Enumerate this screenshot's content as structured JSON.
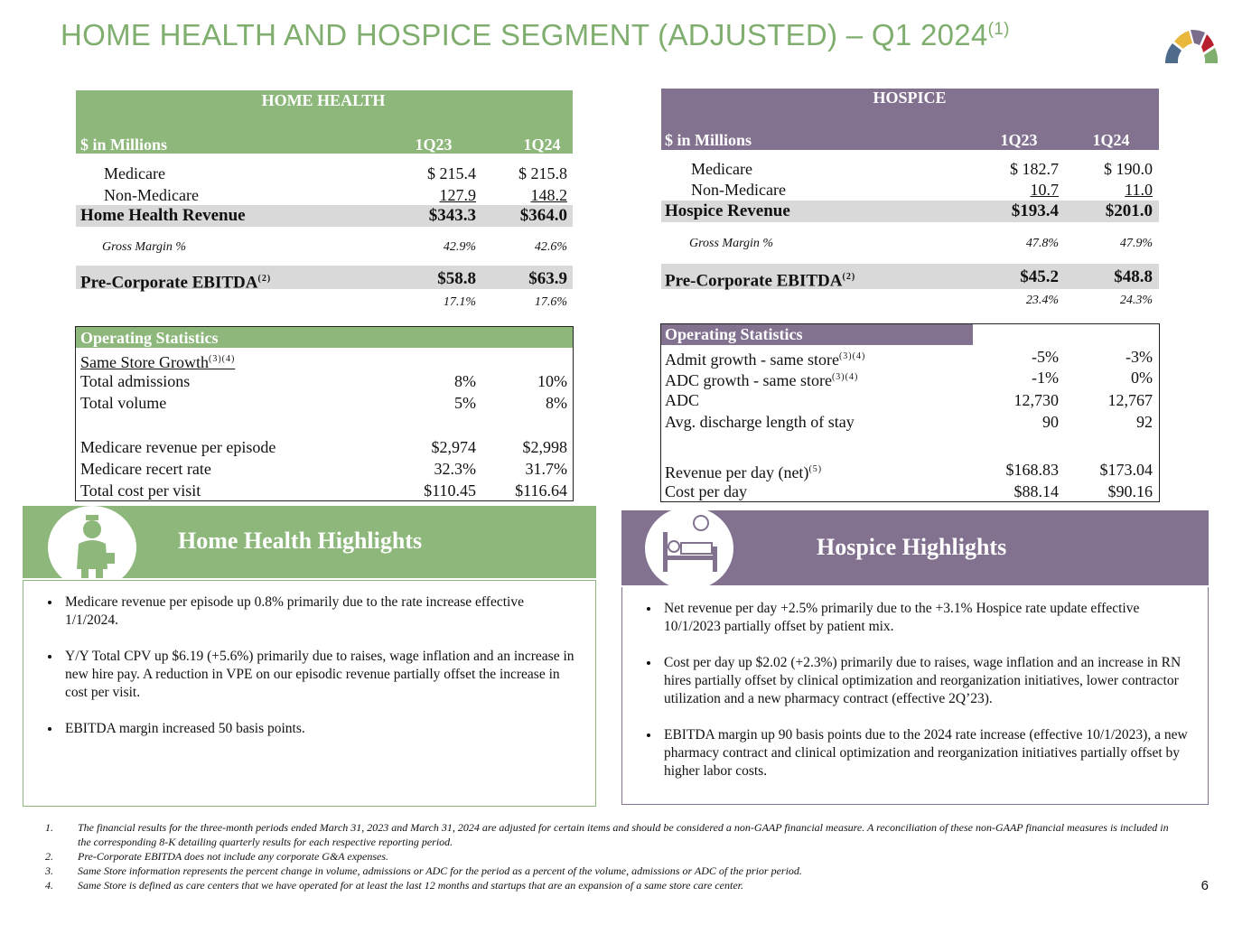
{
  "title": "HOME HEALTH AND HOSPICE SEGMENT (ADJUSTED) – Q1 2024",
  "title_sup": "(1)",
  "home_health": {
    "header": "HOME HEALTH",
    "columns": [
      "$ in Millions",
      "1Q23",
      "1Q24"
    ],
    "rows": [
      {
        "label": "Medicare",
        "values": [
          "$ 215.4",
          "$ 215.8"
        ]
      },
      {
        "label": "Non-Medicare",
        "values": [
          "127.9",
          "148.2"
        ]
      },
      {
        "label": "Home Health Revenue",
        "values": [
          "$343.3",
          "$364.0"
        ]
      },
      {
        "label": "Gross Margin %",
        "values": [
          "42.9%",
          "42.6%"
        ]
      },
      {
        "label": "Pre-Corporate EBITDA",
        "sup": "(2)",
        "values": [
          "$58.8",
          "$63.9"
        ]
      }
    ],
    "ebitda_margin": [
      "17.1%",
      "17.6%"
    ],
    "stats": {
      "header": "Operating Statistics",
      "rows": [
        {
          "label": "Same Store Growth",
          "sup": "(3)(4)"
        },
        {
          "label": "Total admissions",
          "values": [
            "8%",
            "10%"
          ]
        },
        {
          "label": "Total volume",
          "values": [
            "5%",
            "8%"
          ]
        },
        {
          "label": "Medicare revenue per episode",
          "values": [
            "$2,974",
            "$2,998"
          ]
        },
        {
          "label": "Medicare recert rate",
          "values": [
            "32.3%",
            "31.7%"
          ]
        },
        {
          "label": "Total cost per visit",
          "values": [
            "$110.45",
            "$116.64"
          ]
        }
      ]
    },
    "highlights": {
      "title": "Home Health Highlights",
      "bullets": [
        "Medicare revenue per episode up 0.8% primarily due to the rate increase effective 1/1/2024.",
        "Y/Y Total CPV up $6.19 (+5.6%) primarily due to raises, wage inflation and an increase in new hire pay. A reduction in VPE on our episodic revenue partially offset the increase in cost per visit.",
        "EBITDA margin increased 50 basis points."
      ]
    }
  },
  "hospice": {
    "header": "HOSPICE",
    "columns": [
      "$ in Millions",
      "1Q23",
      "1Q24"
    ],
    "rows": [
      {
        "label": "Medicare",
        "values": [
          "$  182.7",
          "$  190.0"
        ]
      },
      {
        "label": "Non-Medicare",
        "values": [
          "10.7",
          "11.0"
        ]
      },
      {
        "label": "Hospice Revenue",
        "values": [
          "$193.4",
          "$201.0"
        ]
      },
      {
        "label": "Gross Margin %",
        "values": [
          "47.8%",
          "47.9%"
        ]
      },
      {
        "label": "Pre-Corporate EBITDA",
        "sup": "(2)",
        "values": [
          "$45.2",
          "$48.8"
        ]
      }
    ],
    "ebitda_margin": [
      "23.4%",
      "24.3%"
    ],
    "stats": {
      "header": "Operating Statistics",
      "rows": [
        {
          "label": "Admit growth - same store",
          "sup": "(3)(4)",
          "values": [
            "-5%",
            "-3%"
          ]
        },
        {
          "label": "ADC growth - same store",
          "sup": "(3)(4)",
          "values": [
            "-1%",
            "0%"
          ]
        },
        {
          "label": "ADC",
          "values": [
            "12,730",
            "12,767"
          ]
        },
        {
          "label": "Avg. discharge length of stay",
          "values": [
            "90",
            "92"
          ]
        },
        {
          "label": "Revenue per day (net)",
          "sup": "(5)",
          "values": [
            "$168.83",
            "$173.04"
          ]
        },
        {
          "label": "Cost per day",
          "values": [
            "$88.14",
            "$90.16"
          ]
        }
      ]
    },
    "highlights": {
      "title": "Hospice Highlights",
      "bullets": [
        "Net revenue per day +2.5% primarily due to the +3.1% Hospice rate update effective 10/1/2023 partially offset by patient mix.",
        "Cost per day up $2.02 (+2.3%) primarily due to raises, wage inflation and an increase in RN hires partially offset by clinical optimization and reorganization initiatives, lower contractor utilization and a new pharmacy contract (effective 2Q’23).",
        "EBITDA margin up 90 basis points due to the 2024 rate increase (effective 10/1/2023), a new pharmacy contract and clinical optimization and reorganization initiatives partially offset by higher labor costs."
      ]
    }
  },
  "footnotes": [
    {
      "number": "1.",
      "text": "The financial results for the three-month periods ended March 31, 2023 and March 31, 2024 are adjusted for certain items and should be considered a non-GAAP financial measure.  A reconciliation of these non-GAAP financial measures is included in the corresponding 8-K detailing quarterly results for each respective reporting period."
    },
    {
      "number": "2.",
      "text": "Pre-Corporate EBITDA does not include any corporate G&A expenses."
    },
    {
      "number": "3.",
      "text": "Same Store information represents the percent change in volume, admissions or ADC for the period as a percent of the volume, admissions or ADC of the prior period."
    },
    {
      "number": "4.",
      "text": "Same Store is defined as care centers that we have operated for at least the last 12 months and startups that are an expansion of a same store care center."
    }
  ],
  "page_number": "6"
}
